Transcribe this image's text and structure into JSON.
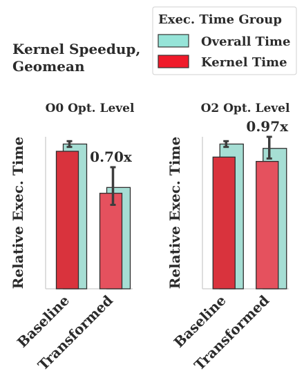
{
  "figure_title": "Kernel Speedup,\nGeomean",
  "legend": {
    "title": "Exec. Time Group",
    "entries": [
      {
        "label": "Overall Time",
        "color": "#96e4d8"
      },
      {
        "label": "Kernel Time",
        "color": "#f01a2a"
      }
    ]
  },
  "chart_data": [
    {
      "type": "bar",
      "title": "O0 Opt. Level",
      "ylabel": "Relative Exec. Time",
      "categories": [
        "Baseline",
        "Transformed"
      ],
      "ylim": [
        0,
        1.05
      ],
      "series": [
        {
          "name": "Overall Time",
          "values": [
            1.0,
            0.7
          ],
          "error": [
            [
              0.98,
              1.02
            ],
            [
              0.58,
              0.84
            ]
          ]
        },
        {
          "name": "Kernel Time",
          "values": [
            0.95,
            0.66
          ]
        }
      ],
      "annotation": "0.70x",
      "grid": false
    },
    {
      "type": "bar",
      "title": "O2 Opt. Level",
      "ylabel": "Relative Exec. Time",
      "categories": [
        "Baseline",
        "Transformed"
      ],
      "ylim": [
        0,
        1.05
      ],
      "series": [
        {
          "name": "Overall Time",
          "values": [
            1.0,
            0.97
          ],
          "error": [
            [
              0.98,
              1.02
            ],
            [
              0.9,
              1.05
            ]
          ]
        },
        {
          "name": "Kernel Time",
          "values": [
            0.91,
            0.88
          ]
        }
      ],
      "annotation": "0.97x",
      "grid": false
    }
  ]
}
